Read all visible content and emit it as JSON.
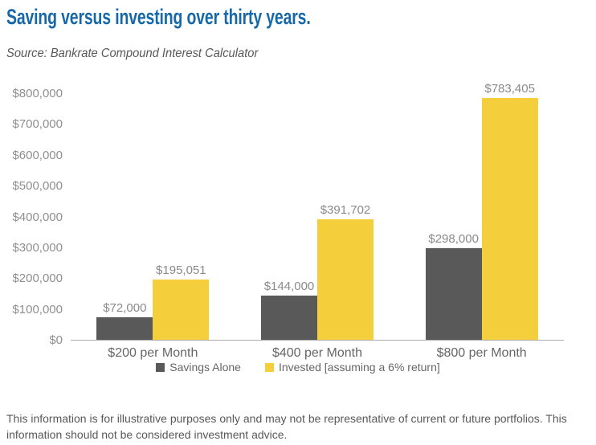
{
  "page": {
    "title": "Saving versus investing over thirty years.",
    "source": "Source: Bankrate Compound Interest Calculator",
    "footer": "This information is for illustrative purposes only and may not be representative of current or future portfolios. This information should not be considered investment advice."
  },
  "colors": {
    "title_blue": "#1768A9",
    "savings_gray": "#595959",
    "invested_yellow": "#F5CE3C",
    "axis_line": "#ABABAB",
    "tick_label_gray": "#8F8F8F",
    "value_label_gray": "#8A8A8A",
    "category_label_gray": "#666666",
    "text_gray": "#58585A"
  },
  "chart_data": {
    "type": "bar",
    "title": "Saving versus investing over thirty years.",
    "subtitle": "Source: Bankrate Compound Interest Calculator",
    "categories": [
      "$200 per Month",
      "$400 per Month",
      "$800 per Month"
    ],
    "series": [
      {
        "name": "Savings Alone",
        "color": "#595959",
        "values": [
          72000,
          144000,
          298000
        ],
        "value_labels": [
          "$72,000",
          "$144,000",
          "$298,000"
        ]
      },
      {
        "name": "Invested [assuming a 6% return]",
        "color": "#F5CE3C",
        "values": [
          195051,
          391702,
          783405
        ],
        "value_labels": [
          "$195,051",
          "$391,702",
          "$783,405"
        ]
      }
    ],
    "ylim": [
      0,
      800000
    ],
    "ytick_labels": [
      "$0",
      "$100,000",
      "$200,000",
      "$300,000",
      "$400,000",
      "$500,000",
      "$600,000",
      "$700,000",
      "$800,000"
    ],
    "grid": false,
    "legend_position": "bottom"
  }
}
